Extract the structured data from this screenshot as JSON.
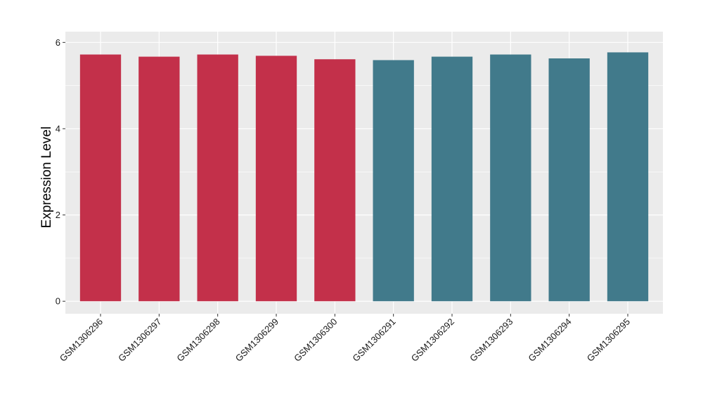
{
  "chart_data": {
    "type": "bar",
    "title": "",
    "xlabel": "",
    "ylabel": "Expression Level",
    "ylim": [
      -0.29,
      6.25
    ],
    "yticks": [
      0,
      2,
      4,
      6
    ],
    "grid": true,
    "categories": [
      "GSM1306296",
      "GSM1306297",
      "GSM1306298",
      "GSM1306299",
      "GSM1306300",
      "GSM1306291",
      "GSM1306292",
      "GSM1306293",
      "GSM1306294",
      "GSM1306295"
    ],
    "values": [
      5.72,
      5.67,
      5.72,
      5.69,
      5.61,
      5.59,
      5.67,
      5.72,
      5.63,
      5.77
    ],
    "bar_colors": [
      "#C3304A",
      "#C3304A",
      "#C3304A",
      "#C3304A",
      "#C3304A",
      "#417A8B",
      "#417A8B",
      "#417A8B",
      "#417A8B",
      "#417A8B"
    ],
    "panel_background": "#EBEBEB"
  }
}
